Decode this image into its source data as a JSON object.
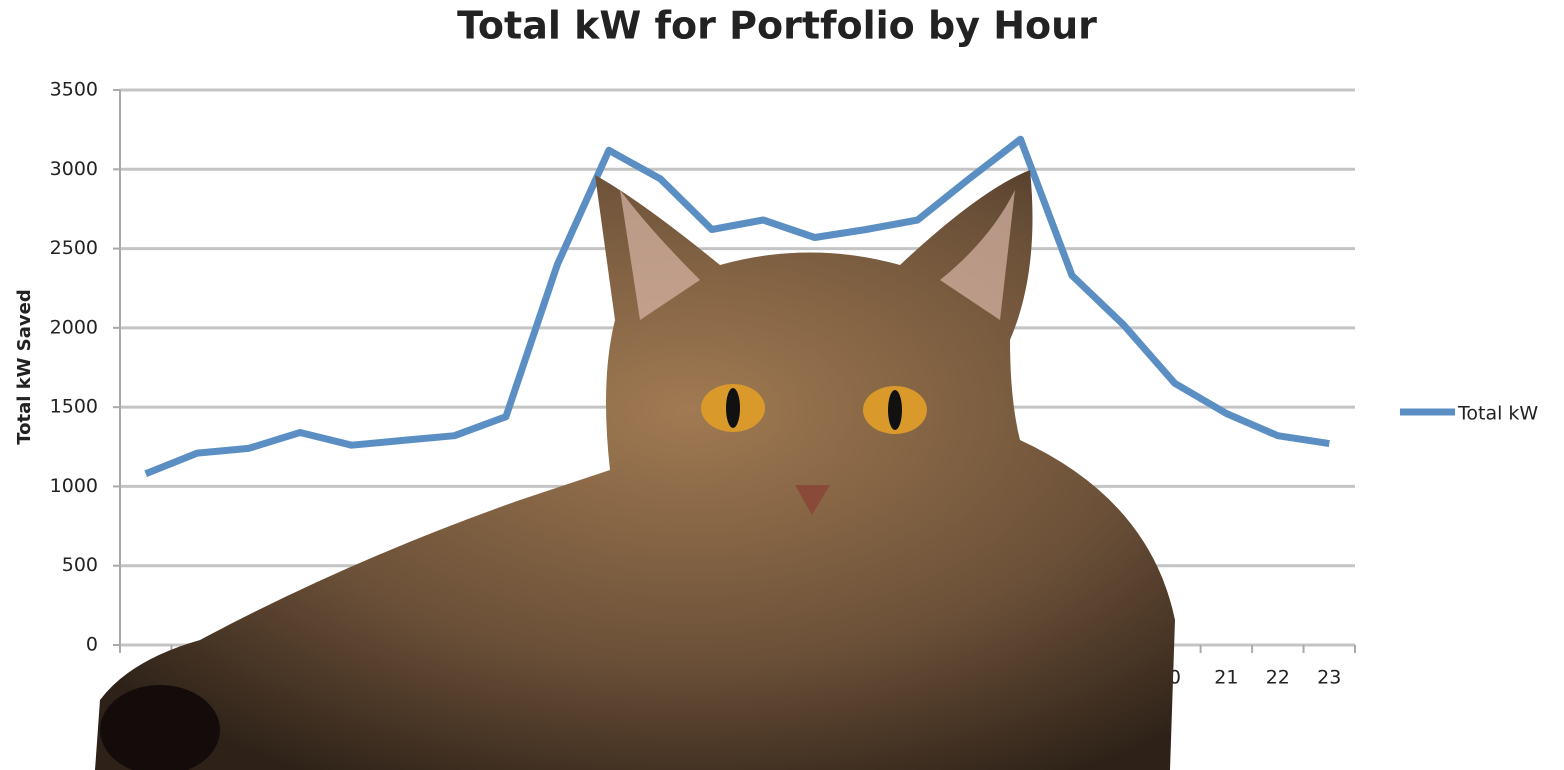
{
  "chart_data": {
    "type": "line",
    "title": "Total kW for Portfolio by Hour",
    "y_label": "Total kW Saved",
    "categories": [
      null,
      null,
      null,
      null,
      null,
      null,
      null,
      null,
      null,
      null,
      null,
      null,
      null,
      null,
      null,
      null,
      null,
      null,
      null,
      null,
      "0",
      "21",
      "22",
      "23"
    ],
    "series": [
      {
        "name": "Total kW",
        "color": "#5b8fc4",
        "values": [
          1080,
          1210,
          1240,
          1340,
          1260,
          1290,
          1320,
          1440,
          2400,
          3120,
          2940,
          2620,
          2680,
          2570,
          2620,
          2680,
          2940,
          3190,
          2330,
          2020,
          1650,
          1460,
          1320,
          1270
        ]
      }
    ],
    "ylim": [
      0,
      3500
    ],
    "yticks": [
      0,
      500,
      1000,
      1500,
      2000,
      2500,
      3000,
      3500
    ],
    "grid": true,
    "legend": "right"
  }
}
